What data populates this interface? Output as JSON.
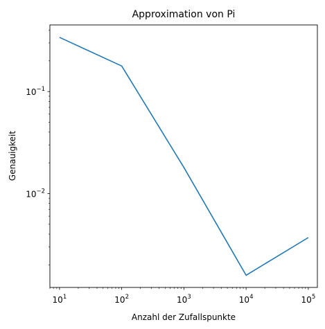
{
  "chart_data": {
    "type": "line",
    "title": "Approximation von Pi",
    "xlabel": "Anzahl der Zufallspunkte",
    "ylabel": "Genauigkeit",
    "xscale": "log",
    "yscale": "log",
    "xlim": [
      7,
      140000
    ],
    "ylim": [
      0.0012,
      0.45
    ],
    "grid": false,
    "legend": "none",
    "series": [
      {
        "color": "#1f77b4",
        "x": [
          10,
          100,
          1000,
          10000,
          100000
        ],
        "y": [
          0.34,
          0.178,
          0.018,
          0.00158,
          0.0037
        ]
      }
    ],
    "x_ticks": [
      {
        "base": "10",
        "exp": "1",
        "value": 10
      },
      {
        "base": "10",
        "exp": "2",
        "value": 100
      },
      {
        "base": "10",
        "exp": "3",
        "value": 1000
      },
      {
        "base": "10",
        "exp": "4",
        "value": 10000
      },
      {
        "base": "10",
        "exp": "5",
        "value": 100000
      }
    ],
    "y_ticks": [
      {
        "base": "10",
        "exp": "−2",
        "value": 0.01
      },
      {
        "base": "10",
        "exp": "−1",
        "value": 0.1
      }
    ]
  }
}
